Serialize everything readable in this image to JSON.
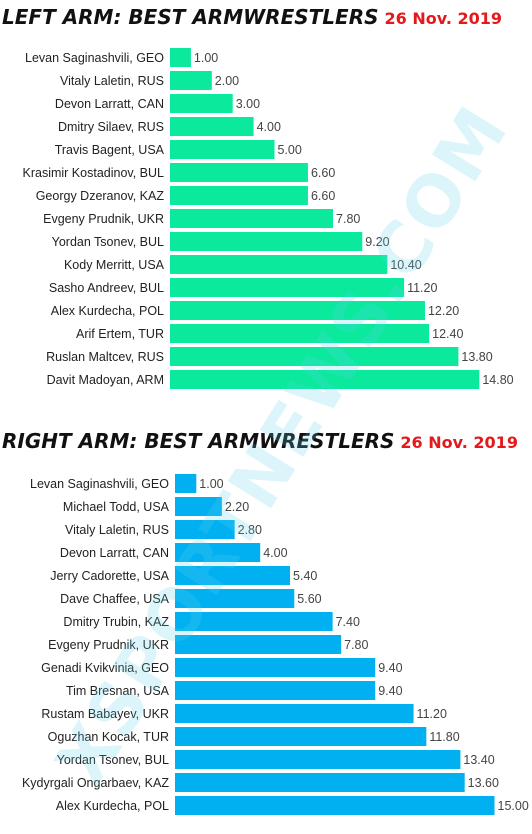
{
  "chart_data": [
    {
      "type": "bar",
      "orientation": "horizontal",
      "title": "LEFT ARM: BEST ARMWRESTLERS",
      "date": "26 Nov. 2019",
      "color": "#0be99c",
      "categories": [
        "Levan Saginashvili, GEO",
        "Vitaly Laletin, RUS",
        "Devon Larratt, CAN",
        "Dmitry Silaev, RUS",
        "Travis Bagent, USA",
        "Krasimir Kostadinov, BUL",
        "Georgy Dzeranov, KAZ",
        "Evgeny Prudnik, UKR",
        "Yordan Tsonev, BUL",
        "Kody Merritt, USA",
        "Sasho Andreev, BUL",
        "Alex Kurdecha, POL",
        "Arif Ertem, TUR",
        "Ruslan Maltcev, RUS",
        "Davit Madoyan, ARM"
      ],
      "values": [
        1.0,
        2.0,
        3.0,
        4.0,
        5.0,
        6.6,
        6.6,
        7.8,
        9.2,
        10.4,
        11.2,
        12.2,
        12.4,
        13.8,
        14.8
      ],
      "value_labels": [
        "1.00",
        "2.00",
        "3.00",
        "4.00",
        "5.00",
        "6.60",
        "6.60",
        "7.80",
        "9.20",
        "10.40",
        "11.20",
        "12.20",
        "12.40",
        "13.80",
        "14.80"
      ]
    },
    {
      "type": "bar",
      "orientation": "horizontal",
      "title": "RIGHT ARM: BEST ARMWRESTLERS",
      "date": "26 Nov. 2019",
      "color": "#00b0f0",
      "categories": [
        "Levan Saginashvili, GEO",
        "Michael Todd, USA",
        "Vitaly Laletin, RUS",
        "Devon Larratt, CAN",
        "Jerry Cadorette, USA",
        "Dave Chaffee, USA",
        "Dmitry Trubin, KAZ",
        "Evgeny Prudnik, UKR",
        "Genadi Kvikvinia, GEO",
        "Tim Bresnan, USA",
        "Rustam Babayev, UKR",
        "Oguzhan Kocak, TUR",
        "Yordan Tsonev, BUL",
        "Kydyrgali Ongarbaev, KAZ",
        "Alex Kurdecha, POL"
      ],
      "values": [
        1.0,
        2.2,
        2.8,
        4.0,
        5.4,
        5.6,
        7.4,
        7.8,
        9.4,
        9.4,
        11.2,
        11.8,
        13.4,
        13.6,
        15.0
      ],
      "value_labels": [
        "1.00",
        "2.20",
        "2.80",
        "4.00",
        "5.40",
        "5.60",
        "7.40",
        "7.80",
        "9.40",
        "9.40",
        "11.20",
        "11.80",
        "13.40",
        "13.60",
        "15.00"
      ]
    }
  ],
  "watermark": "XSPORTNEWS.COM"
}
